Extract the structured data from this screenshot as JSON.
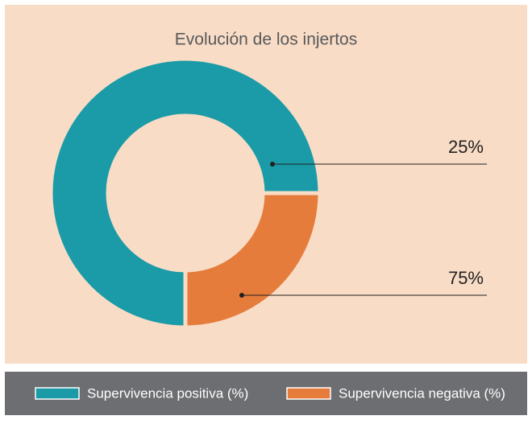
{
  "chart_data": {
    "type": "donut",
    "title": "Evolución de los injertos",
    "categories": [
      "Supervivencia positiva (%)",
      "Supervivencia negativa (%)"
    ],
    "values": [
      75,
      25
    ],
    "colors": [
      "#1a9ba7",
      "#e57c3b"
    ],
    "annotations": [
      "25%",
      "75%"
    ]
  }
}
